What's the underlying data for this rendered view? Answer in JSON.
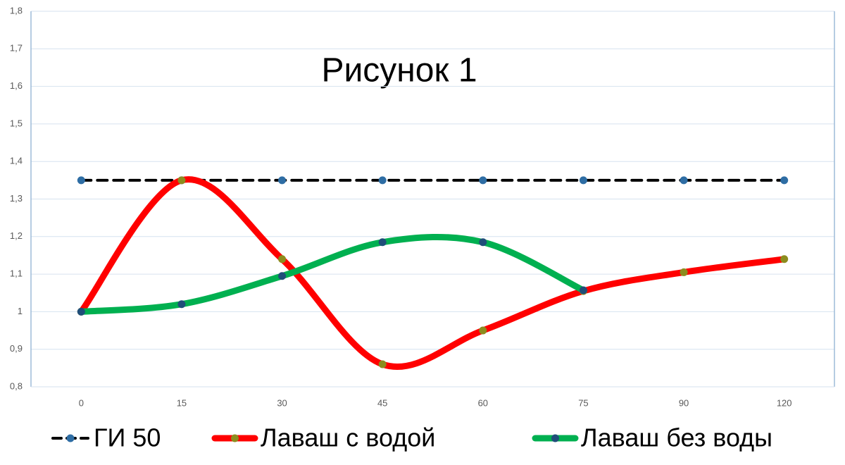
{
  "chart_data": {
    "type": "line",
    "title": "Рисунок 1",
    "categories": [
      "0",
      "15",
      "30",
      "45",
      "60",
      "75",
      "90",
      "120"
    ],
    "series": [
      {
        "name": "ГИ 50",
        "color": "#000000",
        "marker_color": "#2e6da4",
        "dash": true,
        "smooth": false,
        "values": [
          1.35,
          1.35,
          1.35,
          1.35,
          1.35,
          1.35,
          1.35,
          1.35
        ]
      },
      {
        "name": "Лаваш с водой",
        "color": "#ff0000",
        "marker_color": "#8c8c1e",
        "dash": false,
        "smooth": true,
        "values": [
          1.0,
          1.35,
          1.14,
          0.86,
          0.95,
          1.055,
          1.105,
          1.14
        ]
      },
      {
        "name": "Лаваш без воды",
        "color": "#00b050",
        "marker_color": "#1f4e79",
        "dash": false,
        "smooth": true,
        "values": [
          1.0,
          1.02,
          1.095,
          1.185,
          1.185,
          1.057,
          null,
          null
        ]
      }
    ],
    "ylim": [
      0.8,
      1.8
    ],
    "yticks": [
      {
        "value": 0.8,
        "label": "0,8"
      },
      {
        "value": 0.9,
        "label": "0,9"
      },
      1,
      {
        "value": 1.1,
        "label": "1,1"
      },
      {
        "value": 1.2,
        "label": "1,2"
      },
      {
        "value": 1.3,
        "label": "1,3"
      },
      {
        "value": 1.4,
        "label": "1,4"
      },
      {
        "value": 1.5,
        "label": "1,5"
      },
      {
        "value": 1.6,
        "label": "1,6"
      },
      {
        "value": 1.7,
        "label": "1,7"
      },
      {
        "value": 1.8,
        "label": "1,8"
      }
    ],
    "grid": true,
    "legend": "bottom"
  }
}
